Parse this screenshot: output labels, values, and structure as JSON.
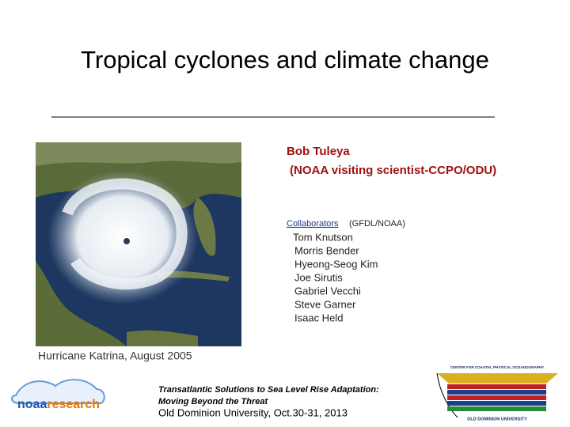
{
  "title": "Tropical cyclones and climate change",
  "author": {
    "name": "Bob Tuleya",
    "affiliation": "(NOAA visiting scientist-CCPO/ODU)"
  },
  "collaborators": {
    "label": "Collaborators",
    "affiliation": "(GFDL/NOAA)",
    "names": [
      "Tom Knutson",
      "Morris Bender",
      "Hyeong-Seog Kim",
      "Joe Sirutis",
      "Gabriel Vecchi",
      "Steve Garner",
      "Isaac Held"
    ]
  },
  "image_caption": "Hurricane Katrina, August 2005",
  "footer": {
    "line1": "Transatlantic Solutions to Sea Level Rise Adaptation:",
    "line2": "Moving Beyond the Threat",
    "line3": "Old Dominion University,  Oct.30-31, 2013"
  },
  "logos": {
    "noaa": {
      "part1": "noaa",
      "part2": "research"
    },
    "odu": {
      "top": "CENTER FOR COASTAL PHYSICAL OCEANOGRAPHY",
      "bottom": "OLD DOMINION UNIVERSITY"
    }
  }
}
